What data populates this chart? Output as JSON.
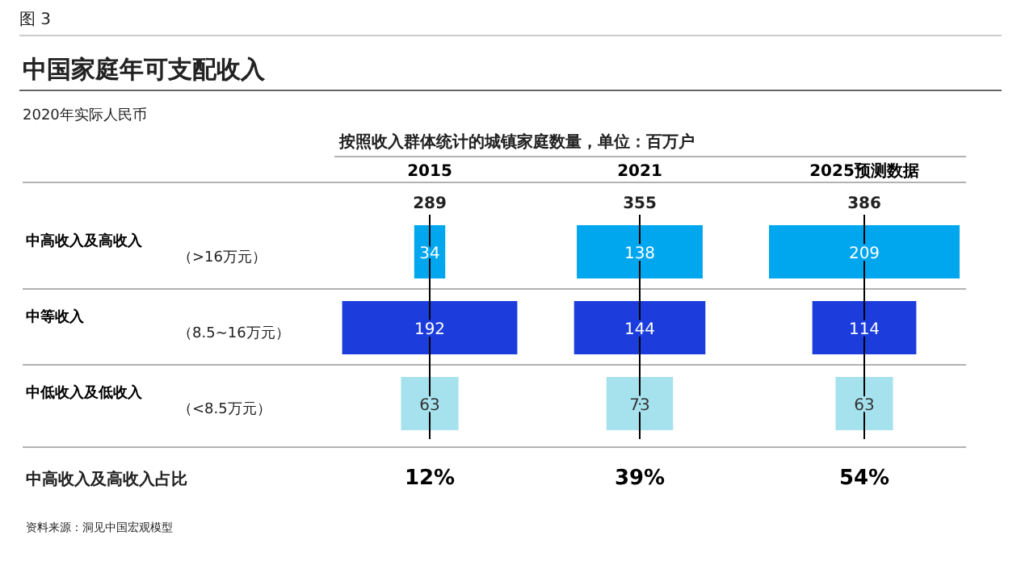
{
  "chart_data": [
    {
      "type": "other",
      "title": "2015",
      "xlabel": "12%",
      "categories": [
        "中高收入及高收入",
        "中等收入",
        "中低收入及低收入"
      ],
      "values": [
        34,
        192,
        63
      ],
      "colors": [
        "#00a6ee",
        "#1c3ddc",
        "#a6e2ee"
      ],
      "data_labels": true,
      "annotations": [
        "图 3",
        "中国家庭年可支配收入",
        "2020年实际人民币",
        "按照收入群体统计的城镇家庭数量，单位：百万户",
        "中高收入及高收入占比",
        "资料来源：洞见中国宏观模型",
        "（>16万元）",
        "（8.5~16万元）",
        "（<8.5万元）",
        "289"
      ]
    },
    {
      "type": "other",
      "title": "2021",
      "xlabel": "39%",
      "values": [
        138,
        144,
        73
      ],
      "colors": [
        "#00a6ee",
        "#1c3ddc",
        "#a6e2ee"
      ],
      "data_labels": true,
      "annotations": [
        "355"
      ]
    },
    {
      "type": "other",
      "title": "2025预测数据",
      "xlabel": "54%",
      "values": [
        209,
        114,
        63
      ],
      "colors": [
        "#00a6ee",
        "#1c3ddc",
        "#a6e2ee"
      ],
      "data_labels": true,
      "annotations": [
        "386"
      ]
    }
  ]
}
